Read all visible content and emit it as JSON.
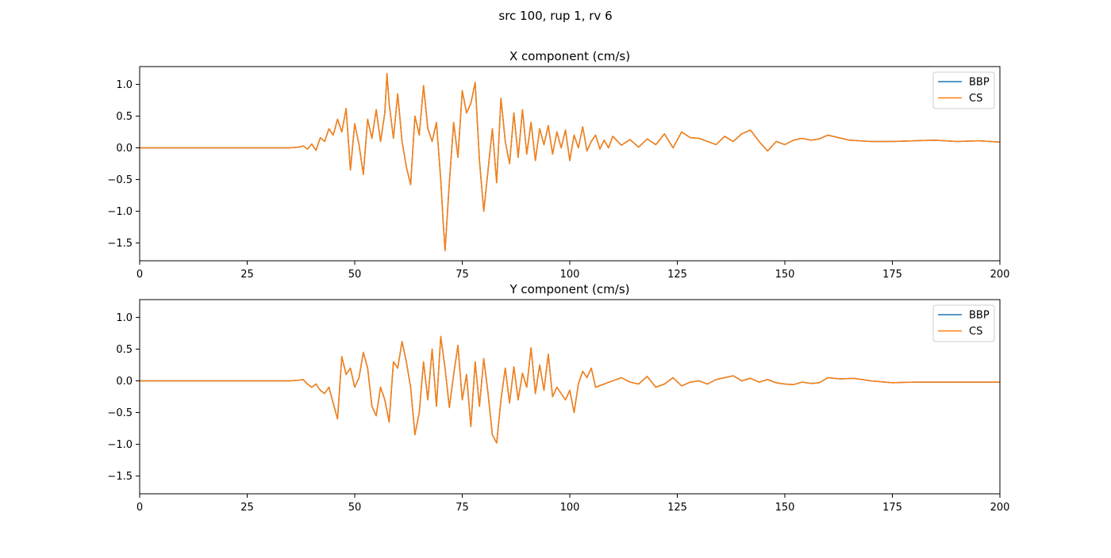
{
  "figure": {
    "suptitle": "src 100, rup 1, rv 6"
  },
  "chart_data": [
    {
      "type": "line",
      "title": "X component (cm/s)",
      "xlabel": "",
      "ylabel": "",
      "xlim": [
        0,
        200
      ],
      "ylim": [
        -1.78,
        1.28
      ],
      "xticks": [
        0,
        25,
        50,
        75,
        100,
        125,
        150,
        175,
        200
      ],
      "xtick_labels": [
        "0",
        "25",
        "50",
        "75",
        "100",
        "125",
        "150",
        "175",
        "200"
      ],
      "yticks": [
        1.0,
        0.5,
        0.0,
        -0.5,
        -1.0,
        -1.5
      ],
      "ytick_labels": [
        "1.0",
        "0.5",
        "0.0",
        "−0.5",
        "−1.0",
        "−1.5"
      ],
      "grid": false,
      "legend": {
        "position": "upper right",
        "entries": [
          "BBP",
          "CS"
        ]
      },
      "series": [
        {
          "name": "BBP",
          "color": "#1f77b4",
          "x": [
            0,
            35,
            37,
            38,
            39,
            40,
            41,
            42,
            43,
            44,
            45,
            46,
            47,
            48,
            49,
            50,
            51,
            52,
            53,
            54,
            55,
            56,
            57,
            57.5,
            58,
            59,
            60,
            61,
            62,
            63,
            64,
            65,
            66,
            67,
            68,
            69,
            70,
            70.5,
            71,
            72,
            73,
            74,
            75,
            76,
            77,
            78,
            79,
            80,
            81,
            82,
            83,
            84,
            85,
            86,
            87,
            88,
            89,
            90,
            91,
            92,
            93,
            94,
            95,
            96,
            97,
            98,
            99,
            100,
            101,
            102,
            103,
            104,
            105,
            106,
            107,
            108,
            109,
            110,
            112,
            114,
            116,
            118,
            120,
            122,
            124,
            126,
            128,
            130,
            132,
            134,
            136,
            138,
            140,
            142,
            144,
            146,
            148,
            150,
            152,
            154,
            156,
            158,
            160,
            165,
            170,
            175,
            180,
            185,
            190,
            195,
            200
          ],
          "y": [
            0.0,
            0.0,
            0.01,
            0.03,
            -0.02,
            0.06,
            -0.04,
            0.16,
            0.1,
            0.3,
            0.2,
            0.45,
            0.25,
            0.62,
            -0.35,
            0.38,
            0.05,
            -0.42,
            0.45,
            0.15,
            0.6,
            0.1,
            0.55,
            1.17,
            0.7,
            0.15,
            0.85,
            0.1,
            -0.3,
            -0.58,
            0.5,
            0.2,
            0.98,
            0.3,
            0.1,
            0.4,
            -0.5,
            -1.1,
            -1.62,
            -0.55,
            0.4,
            -0.15,
            0.9,
            0.55,
            0.7,
            1.03,
            -0.2,
            -1.0,
            -0.35,
            0.3,
            -0.55,
            0.78,
            0.1,
            -0.25,
            0.55,
            -0.15,
            0.6,
            -0.1,
            0.4,
            -0.2,
            0.3,
            0.05,
            0.35,
            -0.1,
            0.25,
            0.0,
            0.28,
            -0.2,
            0.2,
            0.0,
            0.33,
            -0.05,
            0.1,
            0.2,
            -0.02,
            0.12,
            0.0,
            0.18,
            0.04,
            0.13,
            0.01,
            0.14,
            0.05,
            0.22,
            0.0,
            0.25,
            0.16,
            0.15,
            0.1,
            0.05,
            0.18,
            0.1,
            0.22,
            0.28,
            0.1,
            -0.05,
            0.1,
            0.05,
            0.12,
            0.15,
            0.12,
            0.14,
            0.2,
            0.12,
            0.1,
            0.1,
            0.11,
            0.12,
            0.1,
            0.11,
            0.09
          ]
        },
        {
          "name": "CS",
          "color": "#ff7f0e",
          "x": [
            0,
            35,
            37,
            38,
            39,
            40,
            41,
            42,
            43,
            44,
            45,
            46,
            47,
            48,
            49,
            50,
            51,
            52,
            53,
            54,
            55,
            56,
            57,
            57.5,
            58,
            59,
            60,
            61,
            62,
            63,
            64,
            65,
            66,
            67,
            68,
            69,
            70,
            70.5,
            71,
            72,
            73,
            74,
            75,
            76,
            77,
            78,
            79,
            80,
            81,
            82,
            83,
            84,
            85,
            86,
            87,
            88,
            89,
            90,
            91,
            92,
            93,
            94,
            95,
            96,
            97,
            98,
            99,
            100,
            101,
            102,
            103,
            104,
            105,
            106,
            107,
            108,
            109,
            110,
            112,
            114,
            116,
            118,
            120,
            122,
            124,
            126,
            128,
            130,
            132,
            134,
            136,
            138,
            140,
            142,
            144,
            146,
            148,
            150,
            152,
            154,
            156,
            158,
            160,
            165,
            170,
            175,
            180,
            185,
            190,
            195,
            200
          ],
          "y": [
            0.0,
            0.0,
            0.01,
            0.03,
            -0.02,
            0.06,
            -0.04,
            0.16,
            0.1,
            0.3,
            0.2,
            0.45,
            0.25,
            0.62,
            -0.35,
            0.38,
            0.05,
            -0.42,
            0.45,
            0.15,
            0.6,
            0.1,
            0.55,
            1.17,
            0.7,
            0.15,
            0.85,
            0.1,
            -0.3,
            -0.58,
            0.5,
            0.2,
            0.98,
            0.3,
            0.1,
            0.4,
            -0.5,
            -1.1,
            -1.62,
            -0.55,
            0.4,
            -0.15,
            0.9,
            0.55,
            0.7,
            1.03,
            -0.2,
            -1.0,
            -0.35,
            0.3,
            -0.55,
            0.78,
            0.1,
            -0.25,
            0.55,
            -0.15,
            0.6,
            -0.1,
            0.4,
            -0.2,
            0.3,
            0.05,
            0.35,
            -0.1,
            0.25,
            0.0,
            0.28,
            -0.2,
            0.2,
            0.0,
            0.33,
            -0.05,
            0.1,
            0.2,
            -0.02,
            0.12,
            0.0,
            0.18,
            0.04,
            0.13,
            0.01,
            0.14,
            0.05,
            0.22,
            0.0,
            0.25,
            0.16,
            0.15,
            0.1,
            0.05,
            0.18,
            0.1,
            0.22,
            0.28,
            0.1,
            -0.05,
            0.1,
            0.05,
            0.12,
            0.15,
            0.12,
            0.14,
            0.2,
            0.12,
            0.1,
            0.1,
            0.11,
            0.12,
            0.1,
            0.11,
            0.09
          ]
        }
      ]
    },
    {
      "type": "line",
      "title": "Y component (cm/s)",
      "xlabel": "",
      "ylabel": "",
      "xlim": [
        0,
        200
      ],
      "ylim": [
        -1.78,
        1.28
      ],
      "xticks": [
        0,
        25,
        50,
        75,
        100,
        125,
        150,
        175,
        200
      ],
      "xtick_labels": [
        "0",
        "25",
        "50",
        "75",
        "100",
        "125",
        "150",
        "175",
        "200"
      ],
      "yticks": [
        1.0,
        0.5,
        0.0,
        -0.5,
        -1.0,
        -1.5
      ],
      "ytick_labels": [
        "1.0",
        "0.5",
        "0.0",
        "−0.5",
        "−1.0",
        "−1.5"
      ],
      "grid": false,
      "legend": {
        "position": "upper right",
        "entries": [
          "BBP",
          "CS"
        ]
      },
      "series": [
        {
          "name": "BBP",
          "color": "#1f77b4",
          "x": [
            0,
            35,
            37,
            38,
            39,
            40,
            41,
            42,
            43,
            44,
            45,
            46,
            47,
            48,
            49,
            50,
            51,
            52,
            53,
            54,
            55,
            56,
            57,
            58,
            59,
            60,
            61,
            62,
            63,
            64,
            65,
            66,
            67,
            68,
            69,
            70,
            71,
            72,
            73,
            74,
            75,
            76,
            77,
            78,
            79,
            80,
            81,
            82,
            83,
            84,
            85,
            86,
            87,
            88,
            89,
            90,
            91,
            92,
            93,
            94,
            95,
            96,
            97,
            98,
            99,
            100,
            101,
            102,
            103,
            104,
            105,
            106,
            108,
            110,
            112,
            114,
            116,
            118,
            120,
            122,
            124,
            126,
            128,
            130,
            132,
            134,
            136,
            138,
            140,
            142,
            144,
            146,
            148,
            150,
            152,
            154,
            156,
            158,
            160,
            163,
            166,
            170,
            175,
            180,
            185,
            190,
            195,
            200
          ],
          "y": [
            0.0,
            0.0,
            0.01,
            0.02,
            -0.05,
            -0.1,
            -0.05,
            -0.15,
            -0.2,
            -0.1,
            -0.35,
            -0.6,
            0.38,
            0.1,
            0.2,
            -0.1,
            0.05,
            0.45,
            0.2,
            -0.4,
            -0.55,
            -0.1,
            -0.3,
            -0.65,
            0.3,
            0.2,
            0.62,
            0.3,
            -0.1,
            -0.85,
            -0.5,
            0.3,
            -0.3,
            0.5,
            -0.4,
            0.7,
            0.2,
            -0.42,
            0.1,
            0.56,
            -0.3,
            0.1,
            -0.72,
            0.3,
            -0.4,
            0.35,
            -0.2,
            -0.85,
            -0.98,
            -0.3,
            0.2,
            -0.35,
            0.22,
            -0.3,
            0.12,
            -0.1,
            0.52,
            -0.2,
            0.25,
            -0.15,
            0.42,
            -0.25,
            -0.1,
            -0.2,
            -0.3,
            -0.15,
            -0.5,
            -0.05,
            0.15,
            0.05,
            0.2,
            -0.1,
            -0.05,
            0.0,
            0.05,
            -0.02,
            -0.05,
            0.07,
            -0.1,
            -0.05,
            0.05,
            -0.08,
            -0.02,
            0.0,
            -0.05,
            0.02,
            0.05,
            0.08,
            0.0,
            0.04,
            -0.02,
            0.02,
            -0.03,
            -0.05,
            -0.06,
            -0.02,
            -0.04,
            -0.03,
            0.05,
            0.03,
            0.04,
            0.0,
            -0.03,
            -0.02,
            -0.02,
            -0.02,
            -0.02,
            -0.02
          ]
        },
        {
          "name": "CS",
          "color": "#ff7f0e",
          "x": [
            0,
            35,
            37,
            38,
            39,
            40,
            41,
            42,
            43,
            44,
            45,
            46,
            47,
            48,
            49,
            50,
            51,
            52,
            53,
            54,
            55,
            56,
            57,
            58,
            59,
            60,
            61,
            62,
            63,
            64,
            65,
            66,
            67,
            68,
            69,
            70,
            71,
            72,
            73,
            74,
            75,
            76,
            77,
            78,
            79,
            80,
            81,
            82,
            83,
            84,
            85,
            86,
            87,
            88,
            89,
            90,
            91,
            92,
            93,
            94,
            95,
            96,
            97,
            98,
            99,
            100,
            101,
            102,
            103,
            104,
            105,
            106,
            108,
            110,
            112,
            114,
            116,
            118,
            120,
            122,
            124,
            126,
            128,
            130,
            132,
            134,
            136,
            138,
            140,
            142,
            144,
            146,
            148,
            150,
            152,
            154,
            156,
            158,
            160,
            163,
            166,
            170,
            175,
            180,
            185,
            190,
            195,
            200
          ],
          "y": [
            0.0,
            0.0,
            0.01,
            0.02,
            -0.05,
            -0.1,
            -0.05,
            -0.15,
            -0.2,
            -0.1,
            -0.35,
            -0.6,
            0.38,
            0.1,
            0.2,
            -0.1,
            0.05,
            0.45,
            0.2,
            -0.4,
            -0.55,
            -0.1,
            -0.3,
            -0.65,
            0.3,
            0.2,
            0.62,
            0.3,
            -0.1,
            -0.85,
            -0.5,
            0.3,
            -0.3,
            0.5,
            -0.4,
            0.7,
            0.2,
            -0.42,
            0.1,
            0.56,
            -0.3,
            0.1,
            -0.72,
            0.3,
            -0.4,
            0.35,
            -0.2,
            -0.85,
            -0.98,
            -0.3,
            0.2,
            -0.35,
            0.22,
            -0.3,
            0.12,
            -0.1,
            0.52,
            -0.2,
            0.25,
            -0.15,
            0.42,
            -0.25,
            -0.1,
            -0.2,
            -0.3,
            -0.15,
            -0.5,
            -0.05,
            0.15,
            0.05,
            0.2,
            -0.1,
            -0.05,
            0.0,
            0.05,
            -0.02,
            -0.05,
            0.07,
            -0.1,
            -0.05,
            0.05,
            -0.08,
            -0.02,
            0.0,
            -0.05,
            0.02,
            0.05,
            0.08,
            0.0,
            0.04,
            -0.02,
            0.02,
            -0.03,
            -0.05,
            -0.06,
            -0.02,
            -0.04,
            -0.03,
            0.05,
            0.03,
            0.04,
            0.0,
            -0.03,
            -0.02,
            -0.02,
            -0.02,
            -0.02,
            -0.02
          ]
        }
      ]
    }
  ]
}
